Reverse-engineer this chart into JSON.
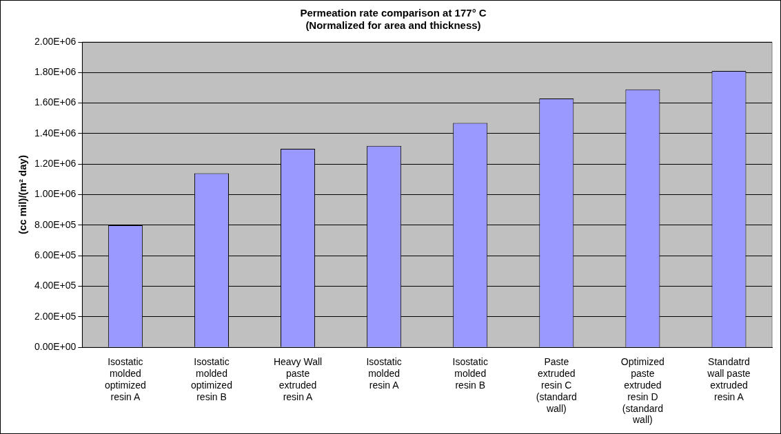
{
  "chart_data": {
    "type": "bar",
    "title": "Permeation rate comparison at 177° C",
    "subtitle": "(Normalized for area and thickness)",
    "ylabel": "(cc mil)/(m² day)",
    "categories": [
      "Isostatic molded optimized resin A",
      "Isostatic molded optimized resin B",
      "Heavy Wall paste extruded resin A",
      "Isostatic molded resin A",
      "Isostatic molded resin B",
      "Paste extruded resin C (standard wall)",
      "Optimized paste extruded resin D (standard wall)",
      "Standatrd wall paste extruded resin A"
    ],
    "values": [
      800000,
      1140000,
      1300000,
      1320000,
      1470000,
      1630000,
      1690000,
      1810000
    ],
    "color": "#9999ff",
    "ylim": [
      0,
      2000000
    ],
    "yticks": [
      {
        "value": 0,
        "label": "0.00E+00"
      },
      {
        "value": 200000,
        "label": "2.00E+05"
      },
      {
        "value": 400000,
        "label": "4.00E+05"
      },
      {
        "value": 600000,
        "label": "6.00E+05"
      },
      {
        "value": 800000,
        "label": "8.00E+05"
      },
      {
        "value": 1000000,
        "label": "1.00E+06"
      },
      {
        "value": 1200000,
        "label": "1.20E+06"
      },
      {
        "value": 1400000,
        "label": "1.40E+06"
      },
      {
        "value": 1600000,
        "label": "1.60E+06"
      },
      {
        "value": 1800000,
        "label": "1.80E+06"
      },
      {
        "value": 2000000,
        "label": "2.00E+06"
      }
    ],
    "grid": true
  }
}
